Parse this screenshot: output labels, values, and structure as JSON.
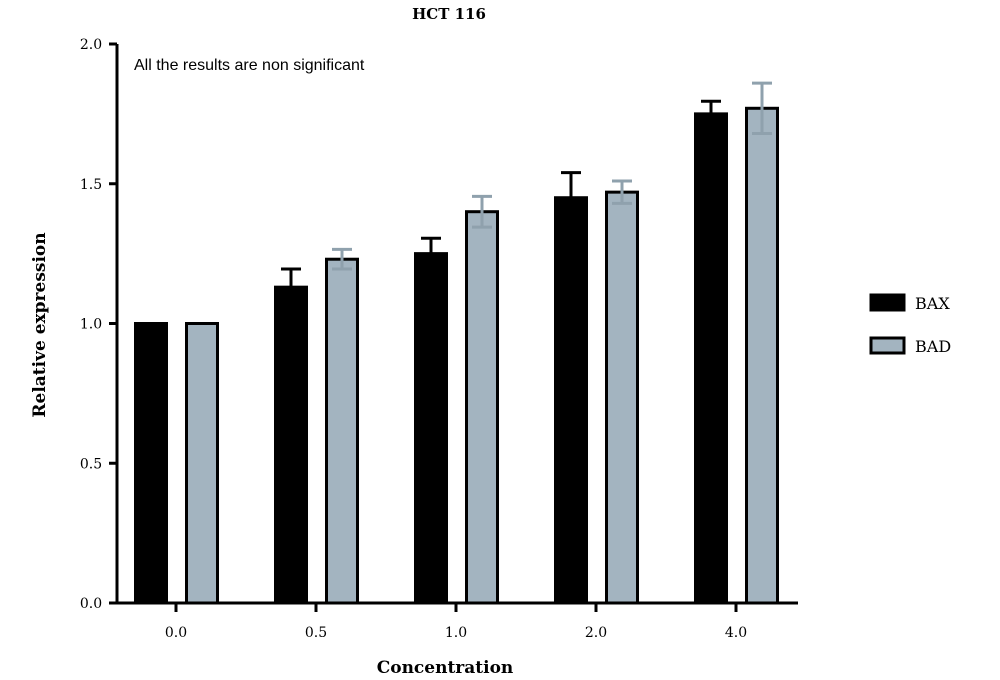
{
  "chart_data": {
    "type": "bar",
    "title": "HCT 116",
    "xlabel": "Concentration",
    "ylabel": "Relative expression",
    "annotation": "All the results are non significant",
    "categories": [
      "0.0",
      "0.5",
      "1.0",
      "2.0",
      "4.0"
    ],
    "ylim": [
      0,
      2.0
    ],
    "yticks": [
      "0.0",
      "0.5",
      "1.0",
      "1.5",
      "2.0"
    ],
    "legend_position": "right",
    "grid": false,
    "series": [
      {
        "name": "BAX",
        "color": "#000000",
        "error_color": "#000000",
        "values": [
          1.0,
          1.13,
          1.25,
          1.45,
          1.75
        ],
        "errors": [
          0,
          0.065,
          0.055,
          0.09,
          0.045
        ]
      },
      {
        "name": "BAD",
        "color": "#a3b4c0",
        "error_color": "#8fa1ad",
        "values": [
          1.0,
          1.23,
          1.4,
          1.47,
          1.77
        ],
        "errors": [
          0,
          0.035,
          0.055,
          0.04,
          0.09
        ]
      }
    ]
  }
}
